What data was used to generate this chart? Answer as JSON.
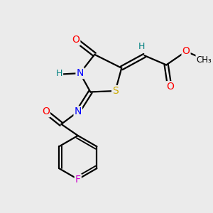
{
  "bg_color": "#ebebeb",
  "bond_color": "#000000",
  "bond_width": 1.6,
  "atom_colors": {
    "O": "#ff0000",
    "N": "#0000ff",
    "S": "#ccaa00",
    "F": "#cc00cc",
    "H": "#008080",
    "C": "#000000"
  },
  "font_size": 9
}
